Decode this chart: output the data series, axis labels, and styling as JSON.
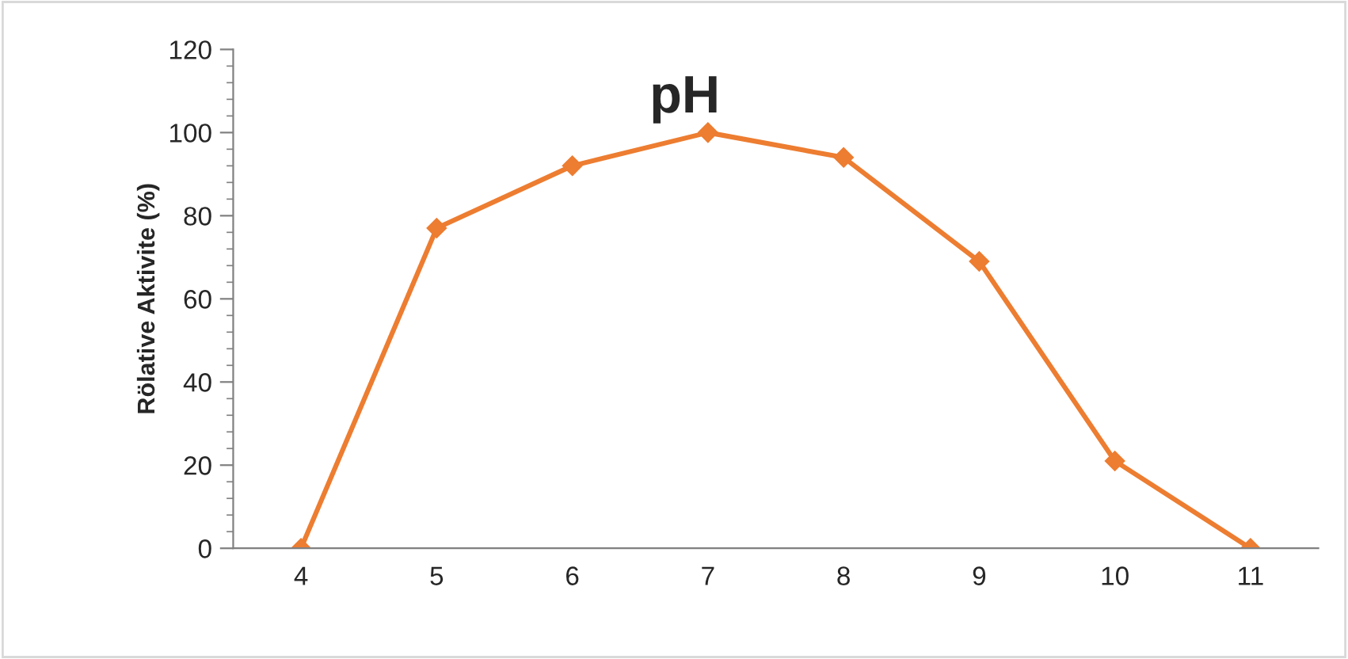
{
  "chart_data": {
    "type": "line",
    "title": "pH",
    "ylabel": "Rölative Aktivite (%)",
    "categories": [
      "4",
      "5",
      "6",
      "7",
      "8",
      "9",
      "10",
      "11"
    ],
    "series": [
      {
        "color": "#ed7d31",
        "values": [
          0,
          77,
          92,
          100,
          94,
          69,
          21,
          0
        ]
      }
    ],
    "ylim": [
      0,
      120
    ],
    "yticks": [
      0,
      20,
      40,
      60,
      80,
      100,
      120
    ],
    "grid": false,
    "legend": false,
    "marker": "diamond",
    "line_style": "solid"
  }
}
